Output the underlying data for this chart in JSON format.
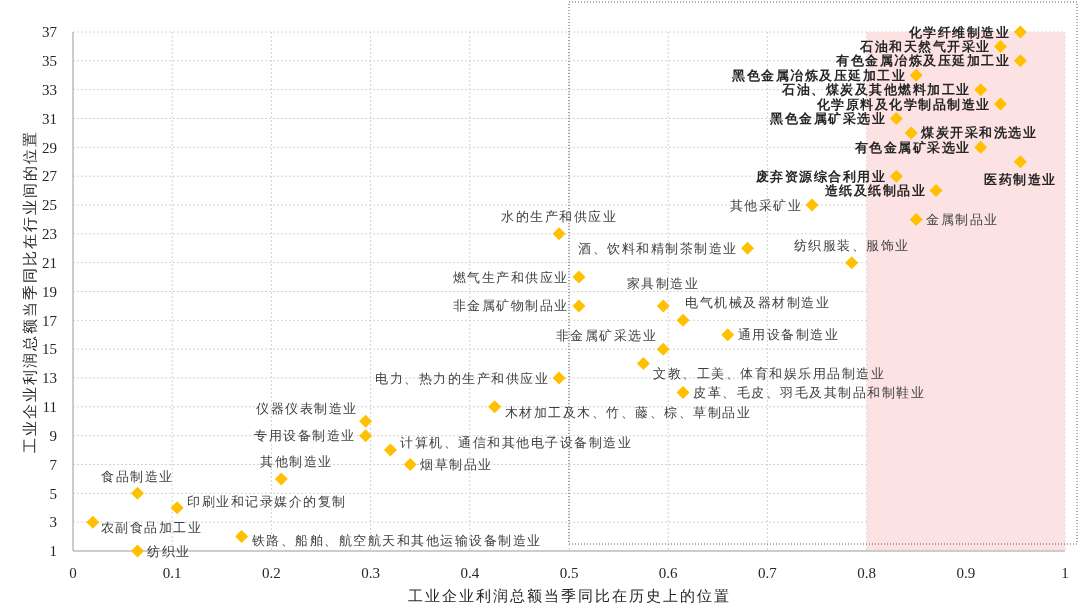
{
  "chart_data": {
    "type": "scatter",
    "xlabel": "工业企业利润总额当季同比在历史上的位置",
    "ylabel": "工业企业利润总额当季同比在行业间的位置",
    "x": [
      0.955,
      0.935,
      0.955,
      0.85,
      0.915,
      0.935,
      0.83,
      0.845,
      0.915,
      0.955,
      0.83,
      0.87,
      0.745,
      0.85,
      0.49,
      0.68,
      0.785,
      0.51,
      0.51,
      0.595,
      0.615,
      0.66,
      0.595,
      0.575,
      0.49,
      0.615,
      0.425,
      0.295,
      0.295,
      0.32,
      0.34,
      0.21,
      0.065,
      0.105,
      0.02,
      0.17,
      0.065
    ],
    "series": [
      {
        "color": "#ffc000",
        "values": [
          37,
          36,
          35,
          34,
          33,
          32,
          31,
          30,
          29,
          28,
          27,
          26,
          25,
          24,
          23,
          22,
          21,
          20,
          18,
          18,
          17,
          16,
          15,
          14,
          13,
          12,
          11,
          10,
          9,
          8,
          7,
          6,
          5,
          4,
          3,
          2,
          1
        ]
      }
    ],
    "marker": "diamond",
    "xlim": [
      0,
      1
    ],
    "ylim": [
      1,
      37
    ],
    "xticks": [
      0,
      0.1,
      0.2,
      0.3,
      0.4,
      0.5,
      0.6,
      0.7,
      0.8,
      0.9,
      1
    ],
    "yticks": [
      1,
      3,
      5,
      7,
      9,
      11,
      13,
      15,
      17,
      19,
      21,
      23,
      25,
      27,
      29,
      31,
      33,
      35,
      37
    ],
    "grid": true,
    "bands": [
      {
        "axis": "x",
        "from": 0.8,
        "to": 1,
        "color": "#fde2e4"
      }
    ],
    "annotations": [
      {
        "text": "化学纤维制造业",
        "x": 0.955,
        "y": 37
      },
      {
        "text": "石油和天然气开采业",
        "x": 0.935,
        "y": 36
      },
      {
        "text": "有色金属冶炼及压延加工业",
        "x": 0.955,
        "y": 35
      },
      {
        "text": "黑色金属冶炼及压延加工业",
        "x": 0.85,
        "y": 34
      },
      {
        "text": "石油、煤炭及其他燃料加工业",
        "x": 0.915,
        "y": 33
      },
      {
        "text": "化学原料及化学制品制造业",
        "x": 0.935,
        "y": 32
      },
      {
        "text": "黑色金属矿采选业",
        "x": 0.83,
        "y": 31
      },
      {
        "text": "煤炭开采和洗选业",
        "x": 0.845,
        "y": 30
      },
      {
        "text": "有色金属矿采选业",
        "x": 0.915,
        "y": 29
      },
      {
        "text": "医药制造业",
        "x": 0.955,
        "y": 28
      },
      {
        "text": "废弃资源综合利用业",
        "x": 0.83,
        "y": 27
      },
      {
        "text": "造纸及纸制品业",
        "x": 0.87,
        "y": 26
      },
      {
        "text": "其他采矿业",
        "x": 0.745,
        "y": 25
      },
      {
        "text": "金属制品业",
        "x": 0.85,
        "y": 24
      },
      {
        "text": "水的生产和供应业",
        "x": 0.49,
        "y": 23
      },
      {
        "text": "酒、饮料和精制茶制造业",
        "x": 0.68,
        "y": 22
      },
      {
        "text": "纺织服装、服饰业",
        "x": 0.785,
        "y": 21
      },
      {
        "text": "燃气生产和供应业",
        "x": 0.51,
        "y": 20
      },
      {
        "text": "非金属矿物制品业",
        "x": 0.51,
        "y": 18
      },
      {
        "text": "家具制造业",
        "x": 0.595,
        "y": 18
      },
      {
        "text": "电气机械及器材制造业",
        "x": 0.615,
        "y": 17
      },
      {
        "text": "通用设备制造业",
        "x": 0.66,
        "y": 16
      },
      {
        "text": "非金属矿采选业",
        "x": 0.595,
        "y": 15
      },
      {
        "text": "文教、工美、体育和娱乐用品制造业",
        "x": 0.575,
        "y": 14
      },
      {
        "text": "电力、热力的生产和供应业",
        "x": 0.49,
        "y": 13
      },
      {
        "text": "皮革、毛皮、羽毛及其制品和制鞋业",
        "x": 0.615,
        "y": 12
      },
      {
        "text": "木材加工及木、竹、藤、棕、草制品业",
        "x": 0.425,
        "y": 11
      },
      {
        "text": "仪器仪表制造业",
        "x": 0.295,
        "y": 10
      },
      {
        "text": "专用设备制造业",
        "x": 0.295,
        "y": 9
      },
      {
        "text": "计算机、通信和其他电子设备制造业",
        "x": 0.32,
        "y": 8
      },
      {
        "text": "烟草制品业",
        "x": 0.34,
        "y": 7
      },
      {
        "text": "其他制造业",
        "x": 0.21,
        "y": 6
      },
      {
        "text": "食品制造业",
        "x": 0.065,
        "y": 5
      },
      {
        "text": "印刷业和记录媒介的复制",
        "x": 0.105,
        "y": 4
      },
      {
        "text": "农副食品加工业",
        "x": 0.02,
        "y": 3
      },
      {
        "text": "铁路、船舶、航空航天和其他运输设备制造业",
        "x": 0.17,
        "y": 2
      },
      {
        "text": "纺织业",
        "x": 0.065,
        "y": 1
      }
    ]
  }
}
